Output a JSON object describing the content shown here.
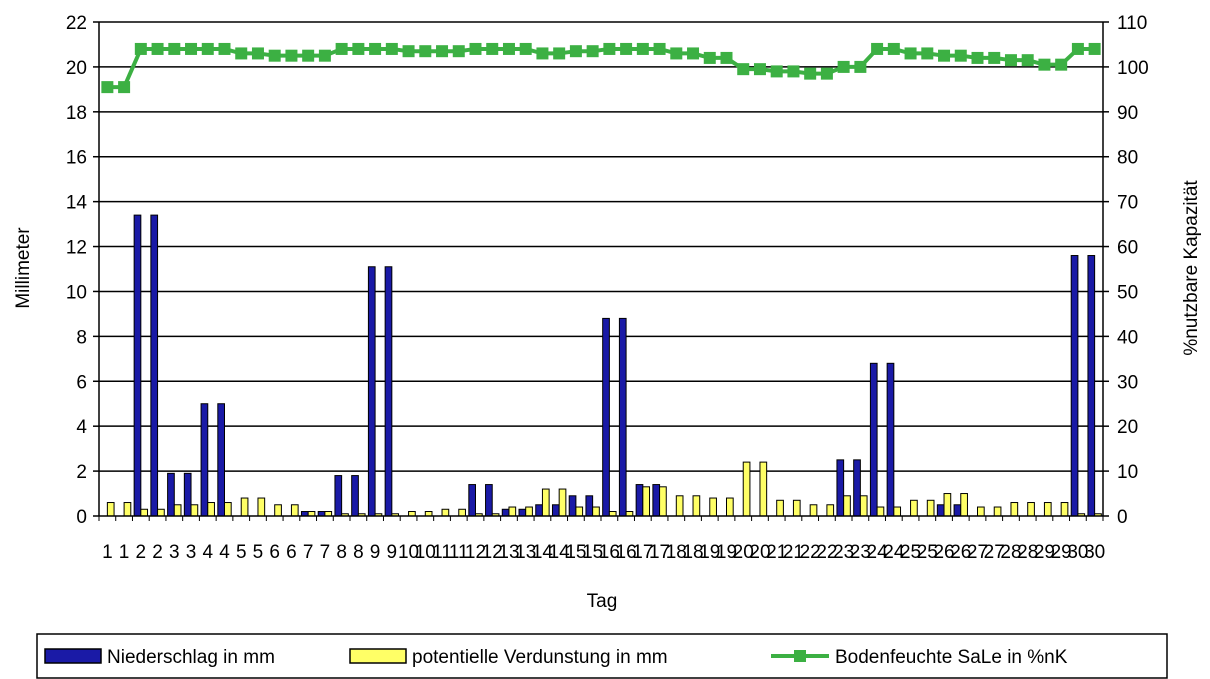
{
  "chart_data": {
    "type": "bar",
    "xlabel": "Tag",
    "ylabel": "Millimeter",
    "y2label": "%nutzbare Kapazität",
    "ylim": [
      0,
      22
    ],
    "y2lim": [
      0,
      110
    ],
    "yticks": [
      0,
      2,
      4,
      6,
      8,
      10,
      12,
      14,
      16,
      18,
      20,
      22
    ],
    "y2ticks": [
      0,
      10,
      20,
      30,
      40,
      50,
      60,
      70,
      80,
      90,
      100,
      110
    ],
    "grid": true,
    "legend_position": "bottom",
    "categories": [
      "1",
      "1",
      "2",
      "2",
      "3",
      "3",
      "4",
      "4",
      "5",
      "5",
      "6",
      "6",
      "7",
      "7",
      "8",
      "8",
      "9",
      "9",
      "10",
      "10",
      "11",
      "11",
      "12",
      "12",
      "13",
      "13",
      "14",
      "14",
      "15",
      "15",
      "16",
      "16",
      "17",
      "17",
      "18",
      "18",
      "19",
      "19",
      "20",
      "20",
      "21",
      "21",
      "22",
      "22",
      "23",
      "23",
      "24",
      "24",
      "25",
      "25",
      "26",
      "26",
      "27",
      "27",
      "28",
      "28",
      "29",
      "29",
      "30",
      "30"
    ],
    "series": [
      {
        "name": "Niederschlag in mm",
        "kind": "bar",
        "axis": "left",
        "color": "#1a1aa6",
        "values": [
          0,
          0,
          13.4,
          13.4,
          1.9,
          1.9,
          5.0,
          5.0,
          0,
          0,
          0,
          0,
          0.2,
          0.2,
          1.8,
          1.8,
          11.1,
          11.1,
          0,
          0,
          0,
          0,
          1.4,
          1.4,
          0.3,
          0.3,
          0.5,
          0.5,
          0.9,
          0.9,
          8.8,
          8.8,
          1.4,
          1.4,
          0,
          0,
          0,
          0,
          0,
          0,
          0,
          0,
          0,
          0,
          2.5,
          2.5,
          6.8,
          6.8,
          0,
          0,
          0.5,
          0.5,
          0,
          0,
          0,
          0,
          0,
          0,
          11.6,
          11.6
        ]
      },
      {
        "name": "potentielle Verdunstung in mm",
        "kind": "bar",
        "axis": "left",
        "color": "#ffff66",
        "values": [
          0.6,
          0.6,
          0.3,
          0.3,
          0.5,
          0.5,
          0.6,
          0.6,
          0.8,
          0.8,
          0.5,
          0.5,
          0.2,
          0.2,
          0.1,
          0.1,
          0.1,
          0.1,
          0.2,
          0.2,
          0.3,
          0.3,
          0.1,
          0.1,
          0.4,
          0.4,
          1.2,
          1.2,
          0.4,
          0.4,
          0.2,
          0.2,
          1.3,
          1.3,
          0.9,
          0.9,
          0.8,
          0.8,
          2.4,
          2.4,
          0.7,
          0.7,
          0.5,
          0.5,
          0.9,
          0.9,
          0.4,
          0.4,
          0.7,
          0.7,
          1.0,
          1.0,
          0.4,
          0.4,
          0.6,
          0.6,
          0.6,
          0.6,
          0.1,
          0.1
        ]
      },
      {
        "name": "Bodenfeuchte SaLe in %nK",
        "kind": "line",
        "axis": "right",
        "color": "#3cb043",
        "values": [
          95.5,
          95.5,
          104,
          104,
          104,
          104,
          104,
          104,
          103,
          103,
          102.5,
          102.5,
          102.5,
          102.5,
          104,
          104,
          104,
          104,
          103.5,
          103.5,
          103.5,
          103.5,
          104,
          104,
          104,
          104,
          103,
          103,
          103.5,
          103.5,
          104,
          104,
          104,
          104,
          103,
          103,
          102,
          102,
          99.5,
          99.5,
          99,
          99,
          98.5,
          98.5,
          100,
          100,
          104,
          104,
          103,
          103,
          102.5,
          102.5,
          102,
          102,
          101.5,
          101.5,
          100.5,
          100.5,
          104,
          104
        ]
      }
    ]
  }
}
